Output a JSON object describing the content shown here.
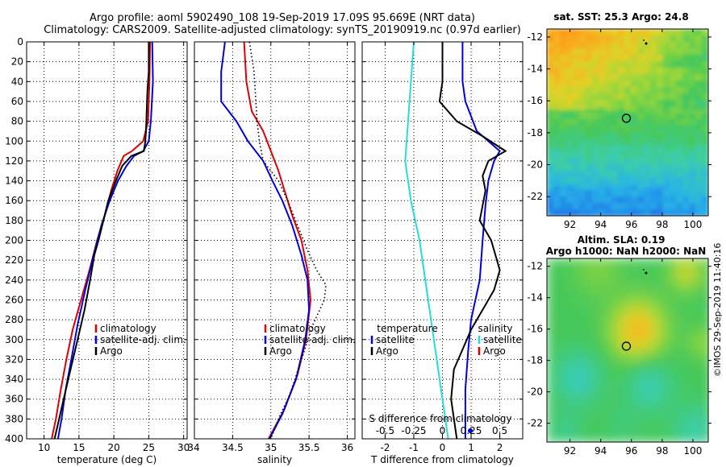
{
  "header": {
    "line1": "Argo profile: aoml 5902490_108 19-Sep-2019 17.09S 95.669E (NRT data)",
    "line2": "Climatology: CARS2009. Satellite-adjusted climatology: synTS_20190919.nc (0.97d earlier)"
  },
  "sidebar_text": "©IMOS 29-Sep-2019 11:40:16",
  "colors": {
    "climatology": "#dd0000",
    "satellite": "#0000dd",
    "argo": "#000000",
    "cyan": "#22dddd"
  },
  "chart_data": [
    {
      "type": "line",
      "id": "temperature",
      "xlabel": "temperature (deg C)",
      "ylabel": "",
      "xlim": [
        7.5,
        30.5
      ],
      "ylim": [
        400,
        0
      ],
      "xticks": [
        10,
        15,
        20,
        25,
        30
      ],
      "yticks": [
        0,
        20,
        40,
        60,
        80,
        100,
        120,
        140,
        160,
        180,
        200,
        220,
        240,
        260,
        280,
        300,
        320,
        340,
        360,
        380,
        400
      ],
      "grid": true,
      "legend": {
        "position": "center-right",
        "entries": [
          "climatology",
          "satellite-adj. clim.",
          "Argo"
        ]
      },
      "series": [
        {
          "name": "climatology",
          "color": "#dd0000",
          "points": [
            [
              25.2,
              0
            ],
            [
              25.1,
              40
            ],
            [
              24.9,
              80
            ],
            [
              24.2,
              100
            ],
            [
              22.6,
              110
            ],
            [
              21.4,
              115
            ],
            [
              20.5,
              130
            ],
            [
              19.6,
              150
            ],
            [
              18.7,
              175
            ],
            [
              17.6,
              200
            ],
            [
              16.5,
              230
            ],
            [
              15.3,
              260
            ],
            [
              14.1,
              290
            ],
            [
              13.2,
              320
            ],
            [
              12.4,
              350
            ],
            [
              11.7,
              380
            ],
            [
              11.1,
              400
            ]
          ]
        },
        {
          "name": "satellite-adj. clim.",
          "color": "#0000dd",
          "points": [
            [
              25.5,
              0
            ],
            [
              25.6,
              40
            ],
            [
              25.3,
              80
            ],
            [
              25.0,
              100
            ],
            [
              24.2,
              110
            ],
            [
              22.9,
              115
            ],
            [
              21.8,
              125
            ],
            [
              20.6,
              140
            ],
            [
              19.4,
              160
            ],
            [
              18.2,
              185
            ],
            [
              17.1,
              215
            ],
            [
              15.9,
              250
            ],
            [
              14.8,
              285
            ],
            [
              13.9,
              320
            ],
            [
              13.1,
              350
            ],
            [
              12.5,
              380
            ],
            [
              12.0,
              400
            ]
          ]
        },
        {
          "name": "Argo",
          "color": "#000000",
          "points": [
            [
              25.0,
              0
            ],
            [
              25.0,
              30
            ],
            [
              24.8,
              50
            ],
            [
              24.6,
              90
            ],
            [
              24.5,
              100
            ],
            [
              24.3,
              110
            ],
            [
              22.5,
              115
            ],
            [
              21.2,
              125
            ],
            [
              20.3,
              140
            ],
            [
              19.2,
              160
            ],
            [
              18.5,
              180
            ],
            [
              17.8,
              200
            ],
            [
              17.2,
              215
            ],
            [
              16.6,
              240
            ],
            [
              15.8,
              270
            ],
            [
              14.8,
              300
            ],
            [
              13.8,
              330
            ],
            [
              12.8,
              360
            ],
            [
              12.0,
              385
            ],
            [
              11.5,
              400
            ]
          ]
        }
      ]
    },
    {
      "type": "line",
      "id": "salinity",
      "xlabel": "salinity",
      "ylabel": "",
      "xlim": [
        34.0,
        36.1
      ],
      "ylim": [
        400,
        0
      ],
      "xticks": [
        34,
        34.5,
        35,
        35.5,
        36
      ],
      "xtick_labels": [
        "34",
        "34.5",
        "35",
        "35.5",
        "36"
      ],
      "grid": true,
      "legend": {
        "position": "center-right",
        "entries": [
          "climatology",
          "satellite-adj. clim.",
          "Argo"
        ]
      },
      "series": [
        {
          "name": "climatology",
          "color": "#dd0000",
          "points": [
            [
              34.65,
              0
            ],
            [
              34.68,
              40
            ],
            [
              34.75,
              70
            ],
            [
              34.9,
              90
            ],
            [
              35.0,
              110
            ],
            [
              35.1,
              130
            ],
            [
              35.18,
              150
            ],
            [
              35.28,
              175
            ],
            [
              35.4,
              200
            ],
            [
              35.48,
              230
            ],
            [
              35.52,
              260
            ],
            [
              35.46,
              300
            ],
            [
              35.35,
              335
            ],
            [
              35.18,
              370
            ],
            [
              34.97,
              400
            ]
          ]
        },
        {
          "name": "satellite-adj. clim.",
          "color": "#0000dd",
          "points": [
            [
              34.4,
              0
            ],
            [
              34.35,
              30
            ],
            [
              34.35,
              60
            ],
            [
              34.55,
              80
            ],
            [
              34.7,
              100
            ],
            [
              34.9,
              120
            ],
            [
              35.02,
              140
            ],
            [
              35.15,
              160
            ],
            [
              35.28,
              185
            ],
            [
              35.4,
              215
            ],
            [
              35.48,
              240
            ],
            [
              35.5,
              270
            ],
            [
              35.45,
              300
            ],
            [
              35.33,
              340
            ],
            [
              35.15,
              375
            ],
            [
              34.98,
              400
            ]
          ]
        },
        {
          "name": "Argo",
          "color": "#000000",
          "points": [
            [
              34.72,
              0
            ],
            [
              34.78,
              30
            ],
            [
              34.82,
              80
            ],
            [
              34.85,
              100
            ],
            [
              34.9,
              120
            ],
            [
              35.1,
              140
            ],
            [
              35.22,
              160
            ],
            [
              35.35,
              185
            ],
            [
              35.48,
              210
            ],
            [
              35.6,
              230
            ],
            [
              35.72,
              245
            ],
            [
              35.7,
              260
            ],
            [
              35.55,
              285
            ],
            [
              35.4,
              320
            ],
            [
              35.25,
              355
            ],
            [
              35.1,
              380
            ],
            [
              35.0,
              400
            ]
          ]
        }
      ]
    },
    {
      "type": "line",
      "id": "difference",
      "xlabel": "T difference from climatology",
      "secondary_xlabel": "S difference from climatology",
      "ylabel": "",
      "xlim": [
        -2.8,
        2.8
      ],
      "ylim": [
        400,
        0
      ],
      "xticks": [
        -2,
        -1,
        0,
        1,
        2
      ],
      "secondary_xticks": [
        -0.5,
        -0.25,
        0,
        0.25,
        0.5
      ],
      "secondary_xtick_labels": [
        "-0.5",
        "-0.25",
        "0",
        "0.25",
        "0.5"
      ],
      "grid": true,
      "legend_temperature": {
        "title": "temperature",
        "entries": [
          "satellite",
          "Argo"
        ]
      },
      "legend_salinity": {
        "title": "salinity",
        "entries": [
          "satellite",
          "Argo"
        ]
      },
      "series": [
        {
          "name": "T satellite",
          "color": "#0000dd",
          "points": [
            [
              0.7,
              0
            ],
            [
              0.7,
              40
            ],
            [
              0.8,
              60
            ],
            [
              1.2,
              90
            ],
            [
              2.0,
              110
            ],
            [
              1.8,
              120
            ],
            [
              1.6,
              140
            ],
            [
              1.5,
              165
            ],
            [
              1.4,
              200
            ],
            [
              1.3,
              240
            ],
            [
              1.0,
              280
            ],
            [
              0.9,
              310
            ],
            [
              0.8,
              350
            ],
            [
              0.8,
              400
            ]
          ]
        },
        {
          "name": "T Argo",
          "color": "#000000",
          "points": [
            [
              0,
              0
            ],
            [
              0,
              40
            ],
            [
              -0.1,
              60
            ],
            [
              0.5,
              80
            ],
            [
              1.4,
              95
            ],
            [
              2.2,
              110
            ],
            [
              1.6,
              120
            ],
            [
              1.4,
              135
            ],
            [
              1.5,
              150
            ],
            [
              1.3,
              180
            ],
            [
              1.7,
              200
            ],
            [
              2.0,
              230
            ],
            [
              1.8,
              250
            ],
            [
              1.4,
              270
            ],
            [
              1.0,
              290
            ],
            [
              0.7,
              310
            ],
            [
              0.4,
              330
            ],
            [
              0.3,
              360
            ],
            [
              0.5,
              400
            ]
          ]
        },
        {
          "name": "S satellite",
          "color": "#22dddd",
          "points": [
            [
              -1.0,
              0
            ],
            [
              -1.1,
              40
            ],
            [
              -1.2,
              80
            ],
            [
              -1.3,
              120
            ],
            [
              -1.1,
              160
            ],
            [
              -0.8,
              200
            ],
            [
              -0.6,
              240
            ],
            [
              -0.4,
              280
            ],
            [
              -0.2,
              320
            ],
            [
              0.0,
              360
            ],
            [
              0.2,
              400
            ]
          ]
        },
        {
          "name": "S Argo",
          "color": "#dd0000",
          "points": []
        }
      ]
    },
    {
      "type": "heatmap",
      "id": "sst-map",
      "title": "sat. SST: 25.3 Argo: 24.8",
      "xlim": [
        90.5,
        101.0
      ],
      "ylim": [
        -23.2,
        -11.5
      ],
      "xticks": [
        92,
        94,
        96,
        98,
        100
      ],
      "yticks": [
        -12,
        -14,
        -16,
        -18,
        -20,
        -22
      ],
      "float_location": [
        95.669,
        -17.09
      ]
    },
    {
      "type": "heatmap",
      "id": "sla-map",
      "title": "Altim. SLA: 0.19",
      "subtitle": "Argo h1000: NaN h2000: NaN",
      "xlim": [
        90.5,
        101.0
      ],
      "ylim": [
        -23.2,
        -11.5
      ],
      "xticks": [
        92,
        94,
        96,
        98,
        100
      ],
      "yticks": [
        -12,
        -14,
        -16,
        -18,
        -20,
        -22
      ],
      "float_location": [
        95.669,
        -17.09
      ]
    }
  ]
}
